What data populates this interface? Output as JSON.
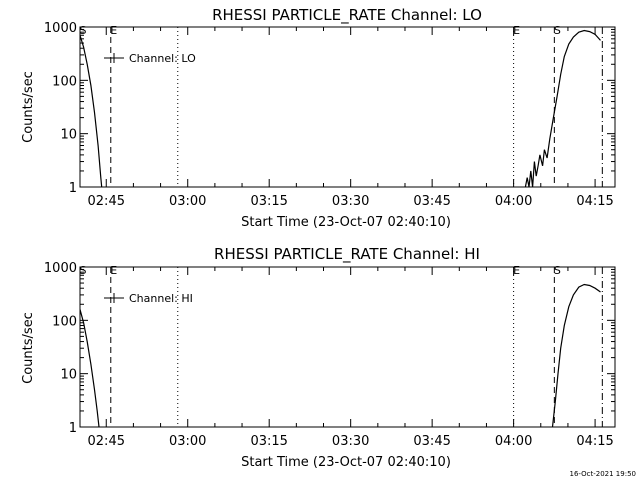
{
  "chart_data": [
    {
      "type": "line",
      "title": "RHESSI PARTICLE_RATE Channel: LO",
      "xlabel": "Start Time (23-Oct-07 02:40:10)",
      "ylabel": "Counts/sec",
      "y_scale": "log",
      "ylim": [
        1,
        1000
      ],
      "xlim": [
        "02:40:10",
        "04:18:40"
      ],
      "x_ticks": [
        "02:45",
        "03:00",
        "03:15",
        "03:30",
        "03:45",
        "04:00",
        "04:15"
      ],
      "y_ticks": [
        "1",
        "10",
        "100",
        "1000"
      ],
      "legend": {
        "placement": "top-left",
        "entries": [
          "Channel: LO"
        ]
      },
      "markers": [
        {
          "label": "S",
          "time": "02:40:10",
          "style": "dash-dot"
        },
        {
          "label": "E",
          "time": "02:45:50",
          "style": "dashed"
        },
        {
          "label": "",
          "time": "02:58:10",
          "style": "dotted"
        },
        {
          "label": "E",
          "time": "04:00:00",
          "style": "dotted"
        },
        {
          "label": "S",
          "time": "04:07:30",
          "style": "dashed"
        },
        {
          "label": "",
          "time": "04:16:20",
          "style": "dash-dot"
        }
      ],
      "series": [
        {
          "segments": [
            [
              [
                "02:40:10",
                700
              ],
              [
                "02:40:50",
                420
              ],
              [
                "02:41:30",
                200
              ],
              [
                "02:42:10",
                80
              ],
              [
                "02:42:50",
                25
              ],
              [
                "02:43:30",
                6
              ],
              [
                "02:44:00",
                1.5
              ],
              [
                "02:44:10",
                1
              ]
            ],
            [
              [
                "04:02:10",
                1
              ],
              [
                "04:02:30",
                1.5
              ],
              [
                "04:02:50",
                1
              ],
              [
                "04:03:10",
                2
              ],
              [
                "04:03:30",
                1
              ],
              [
                "04:03:50",
                3
              ],
              [
                "04:04:10",
                1.6
              ],
              [
                "04:04:30",
                2.5
              ],
              [
                "04:04:50",
                4
              ],
              [
                "04:05:20",
                2.5
              ],
              [
                "04:05:40",
                5
              ],
              [
                "04:06:10",
                3.5
              ],
              [
                "04:06:40",
                8
              ],
              [
                "04:07:20",
                20
              ],
              [
                "04:08:00",
                50
              ],
              [
                "04:08:40",
                130
              ],
              [
                "04:09:20",
                280
              ],
              [
                "04:10:10",
                480
              ],
              [
                "04:11:00",
                650
              ],
              [
                "04:12:00",
                800
              ],
              [
                "04:13:00",
                860
              ],
              [
                "04:14:00",
                820
              ],
              [
                "04:15:00",
                730
              ],
              [
                "04:16:00",
                560
              ]
            ]
          ]
        }
      ]
    },
    {
      "type": "line",
      "title": "RHESSI PARTICLE_RATE Channel: HI",
      "xlabel": "Start Time (23-Oct-07 02:40:10)",
      "ylabel": "Counts/sec",
      "y_scale": "log",
      "ylim": [
        1,
        1000
      ],
      "xlim": [
        "02:40:10",
        "04:18:40"
      ],
      "x_ticks": [
        "02:45",
        "03:00",
        "03:15",
        "03:30",
        "03:45",
        "04:00",
        "04:15"
      ],
      "y_ticks": [
        "1",
        "10",
        "100",
        "1000"
      ],
      "legend": {
        "placement": "top-left",
        "entries": [
          "Channel: HI"
        ]
      },
      "markers": [
        {
          "label": "S",
          "time": "02:40:10",
          "style": "dash-dot"
        },
        {
          "label": "E",
          "time": "02:45:50",
          "style": "dashed"
        },
        {
          "label": "",
          "time": "02:58:10",
          "style": "dotted"
        },
        {
          "label": "E",
          "time": "04:00:00",
          "style": "dotted"
        },
        {
          "label": "S",
          "time": "04:07:30",
          "style": "dashed"
        },
        {
          "label": "",
          "time": "04:16:20",
          "style": "dash-dot"
        }
      ],
      "series": [
        {
          "segments": [
            [
              [
                "02:40:10",
                160
              ],
              [
                "02:40:50",
                90
              ],
              [
                "02:41:30",
                40
              ],
              [
                "02:42:10",
                15
              ],
              [
                "02:42:50",
                5
              ],
              [
                "02:43:20",
                2
              ],
              [
                "02:43:40",
                1
              ]
            ],
            [
              [
                "04:07:10",
                1
              ],
              [
                "04:07:40",
                3
              ],
              [
                "04:08:10",
                10
              ],
              [
                "04:08:40",
                30
              ],
              [
                "04:09:20",
                80
              ],
              [
                "04:10:10",
                180
              ],
              [
                "04:11:00",
                300
              ],
              [
                "04:12:00",
                420
              ],
              [
                "04:13:00",
                470
              ],
              [
                "04:14:00",
                450
              ],
              [
                "04:15:00",
                400
              ],
              [
                "04:16:00",
                340
              ]
            ]
          ]
        }
      ]
    }
  ],
  "footer": {
    "timestamp": "16-Oct-2021 19:50"
  }
}
